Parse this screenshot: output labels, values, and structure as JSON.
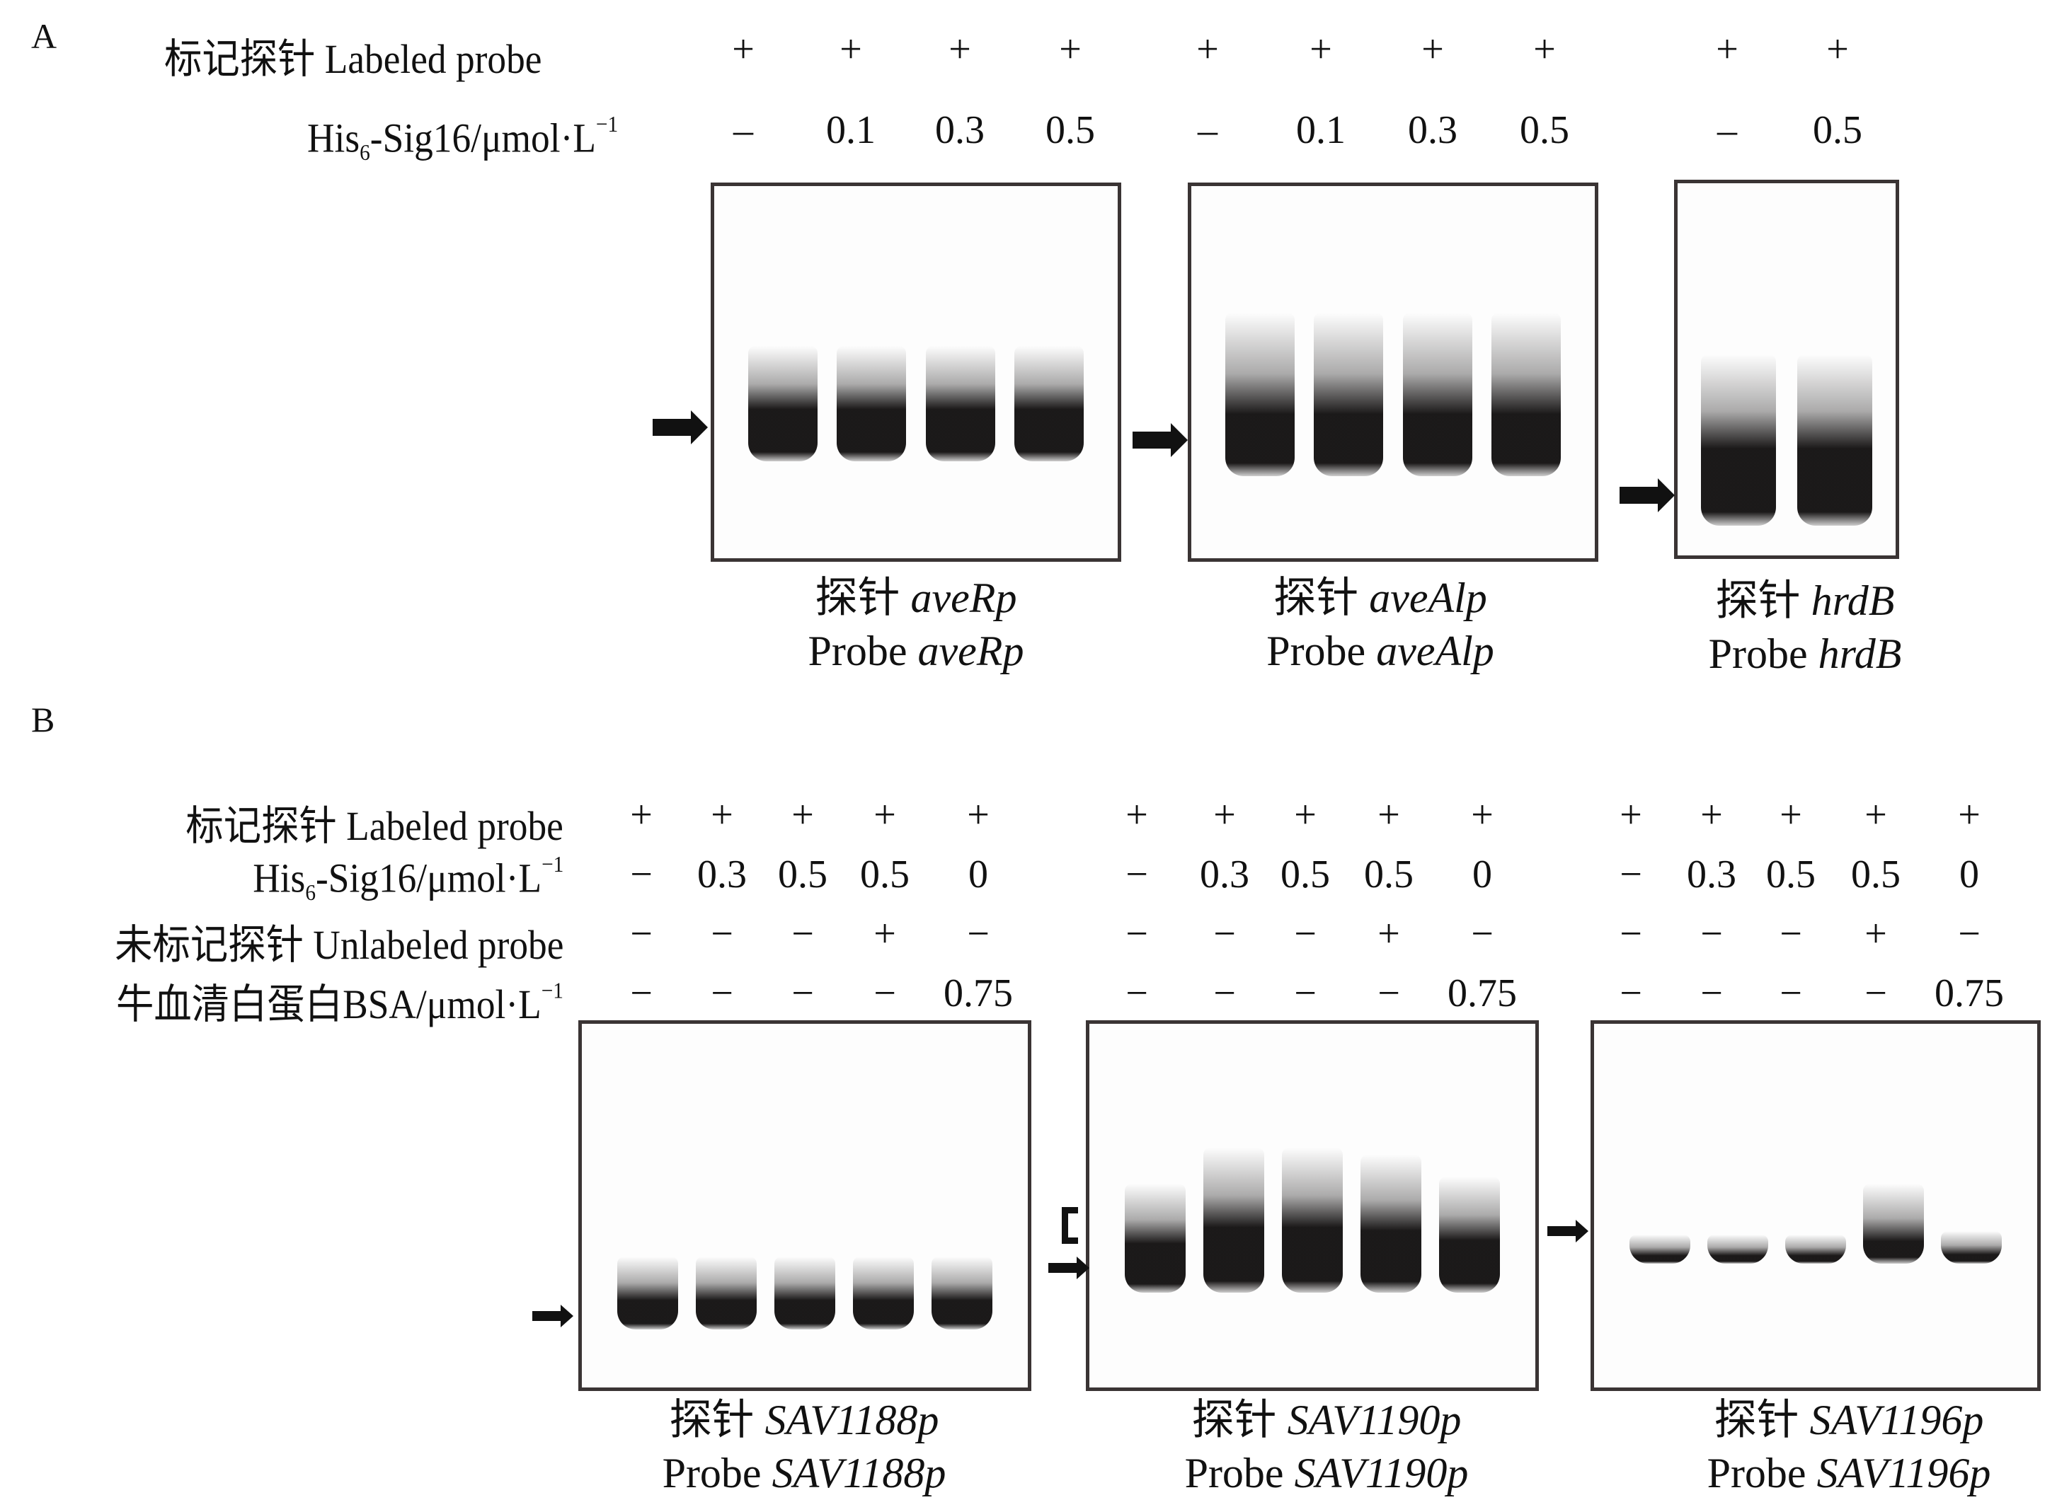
{
  "figure": {
    "panels": [
      {
        "letter": "A",
        "row_labels": {
          "labeled_probe": "标记探针 Labeled probe",
          "protein_prefix": "His",
          "protein_sub": "6",
          "protein_suffix": "-Sig16/μmol·L",
          "protein_sup": "−1"
        },
        "gels": [
          {
            "probe_cn": "探针",
            "probe_en": "Probe",
            "probe_name": "aveRp",
            "labeled_probe": [
              "+",
              "+",
              "+",
              "+"
            ],
            "protein_conc": [
              "–",
              "0.1",
              "0.3",
              "0.5"
            ],
            "markers": [
              "free-probe-arrow"
            ]
          },
          {
            "probe_cn": "探针",
            "probe_en": "Probe",
            "probe_name": "aveAlp",
            "labeled_probe": [
              "+",
              "+",
              "+",
              "+"
            ],
            "protein_conc": [
              "–",
              "0.1",
              "0.3",
              "0.5"
            ],
            "markers": [
              "free-probe-arrow"
            ]
          },
          {
            "probe_cn": "探针",
            "probe_en": "Probe",
            "probe_name": "hrdB",
            "labeled_probe": [
              "+",
              "+"
            ],
            "protein_conc": [
              "–",
              "0.5"
            ],
            "markers": [
              "free-probe-arrow"
            ]
          }
        ]
      },
      {
        "letter": "B",
        "row_labels": {
          "labeled_probe": "标记探针 Labeled probe",
          "protein_prefix": "His",
          "protein_sub": "6",
          "protein_suffix": "-Sig16/μmol·L",
          "protein_sup": "−1",
          "unlabeled_probe": "未标记探针 Unlabeled probe",
          "bsa_prefix": "牛血清白蛋白BSA/μmol·L",
          "bsa_sup": "−1"
        },
        "gels": [
          {
            "probe_cn": "探针",
            "probe_en": "Probe",
            "probe_name": "SAV1188p",
            "labeled_probe": [
              "+",
              "+",
              "+",
              "+",
              "+"
            ],
            "protein_conc": [
              "−",
              "0.3",
              "0.5",
              "0.5",
              "0"
            ],
            "unlabeled_probe": [
              "−",
              "−",
              "−",
              "+",
              "−"
            ],
            "bsa_conc": [
              "−",
              "−",
              "−",
              "−",
              "0.75"
            ],
            "markers": [
              "free-probe-arrow"
            ]
          },
          {
            "probe_cn": "探针",
            "probe_en": "Probe",
            "probe_name": "SAV1190p",
            "labeled_probe": [
              "+",
              "+",
              "+",
              "+",
              "+"
            ],
            "protein_conc": [
              "−",
              "0.3",
              "0.5",
              "0.5",
              "0"
            ],
            "unlabeled_probe": [
              "−",
              "−",
              "−",
              "+",
              "−"
            ],
            "bsa_conc": [
              "−",
              "−",
              "−",
              "−",
              "0.75"
            ],
            "markers": [
              "shifted-complex-bracket",
              "free-probe-arrow"
            ]
          },
          {
            "probe_cn": "探针",
            "probe_en": "Probe",
            "probe_name": "SAV1196p",
            "labeled_probe": [
              "+",
              "+",
              "+",
              "+",
              "+"
            ],
            "protein_conc": [
              "−",
              "0.3",
              "0.5",
              "0.5",
              "0"
            ],
            "unlabeled_probe": [
              "−",
              "−",
              "−",
              "+",
              "−"
            ],
            "bsa_conc": [
              "−",
              "−",
              "−",
              "−",
              "0.75"
            ],
            "markers": [
              "free-probe-arrow"
            ]
          }
        ]
      }
    ]
  }
}
